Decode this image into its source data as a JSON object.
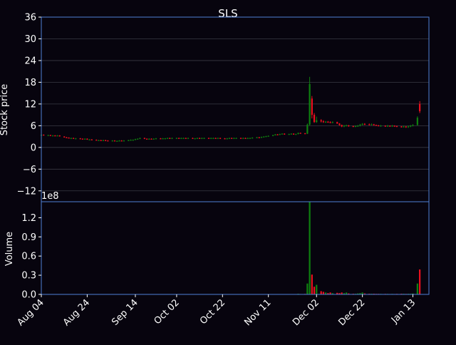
{
  "chart_data": {
    "type": "candlestick",
    "title": "SLS",
    "colors": {
      "background": "#07040e",
      "frame": "#4f7fd6",
      "grid": "#3a3a44",
      "up": "#0f7f0f",
      "down": "#e8101e",
      "text": "#ffffff"
    },
    "price_panel": {
      "ylabel": "Stock price",
      "ylim": [
        -15,
        36
      ],
      "yticks": [
        36,
        30,
        24,
        18,
        12,
        6,
        0,
        -6,
        -12
      ],
      "yticklabels": [
        "36",
        "30",
        "24",
        "18",
        "12",
        "6",
        "0",
        "−6",
        "−12"
      ]
    },
    "volume_panel": {
      "ylabel": "Volume",
      "offset_label": "1e8",
      "ylim": [
        0,
        1.45
      ],
      "yticks": [
        1.2,
        0.9,
        0.6,
        0.3,
        0.0
      ],
      "yticklabels": [
        "1.2",
        "0.9",
        "0.6",
        "0.3",
        "0.0"
      ]
    },
    "x_ticks": [
      {
        "day": 0,
        "label": "Aug 04"
      },
      {
        "day": 20,
        "label": "Aug 24"
      },
      {
        "day": 41,
        "label": "Sep 14"
      },
      {
        "day": 59,
        "label": "Oct 02"
      },
      {
        "day": 79,
        "label": "Oct 22"
      },
      {
        "day": 99,
        "label": "Nov 11"
      },
      {
        "day": 120,
        "label": "Dec 02"
      },
      {
        "day": 140,
        "label": "Dec 22"
      },
      {
        "day": 162,
        "label": "Jan 13"
      }
    ],
    "x_range": [
      0,
      169
    ],
    "candles": [
      [
        0,
        3.4,
        3.5,
        3.6,
        3.3,
        0.002
      ],
      [
        1,
        3.5,
        3.4,
        3.6,
        3.3,
        0.002
      ],
      [
        3,
        3.4,
        3.4,
        3.5,
        3.3,
        0.002
      ],
      [
        4,
        3.4,
        3.3,
        3.5,
        3.2,
        0.002
      ],
      [
        5,
        3.3,
        3.3,
        3.4,
        3.2,
        0.002
      ],
      [
        6,
        3.3,
        3.2,
        3.4,
        3.1,
        0.002
      ],
      [
        7,
        3.2,
        3.3,
        3.4,
        3.1,
        0.002
      ],
      [
        8,
        3.3,
        3.1,
        3.4,
        3.0,
        0.002
      ],
      [
        10,
        3.0,
        2.8,
        3.1,
        2.7,
        0.002
      ],
      [
        11,
        2.8,
        2.7,
        2.9,
        2.6,
        0.002
      ],
      [
        12,
        2.7,
        2.6,
        2.8,
        2.5,
        0.002
      ],
      [
        13,
        2.6,
        2.6,
        2.7,
        2.5,
        0.002
      ],
      [
        14,
        2.6,
        2.5,
        2.7,
        2.4,
        0.002
      ],
      [
        15,
        2.5,
        2.5,
        2.6,
        2.4,
        0.002
      ],
      [
        17,
        2.5,
        2.4,
        2.6,
        2.3,
        0.002
      ],
      [
        18,
        2.4,
        2.3,
        2.5,
        2.2,
        0.002
      ],
      [
        19,
        2.3,
        2.4,
        2.5,
        2.2,
        0.002
      ],
      [
        20,
        2.4,
        2.2,
        2.5,
        2.1,
        0.004
      ],
      [
        21,
        2.2,
        2.2,
        2.3,
        2.1,
        0.003
      ],
      [
        22,
        2.2,
        2.1,
        2.3,
        2.0,
        0.003
      ],
      [
        24,
        2.1,
        2.0,
        2.2,
        1.9,
        0.002
      ],
      [
        25,
        2.0,
        2.0,
        2.1,
        1.9,
        0.002
      ],
      [
        26,
        2.0,
        1.9,
        2.1,
        1.8,
        0.002
      ],
      [
        27,
        1.9,
        2.0,
        2.1,
        1.8,
        0.002
      ],
      [
        28,
        2.0,
        1.9,
        2.1,
        1.8,
        0.004
      ],
      [
        29,
        1.9,
        1.8,
        2.0,
        1.7,
        0.002
      ],
      [
        31,
        1.8,
        1.9,
        2.0,
        1.7,
        0.002
      ],
      [
        32,
        1.9,
        1.8,
        2.0,
        1.7,
        0.003
      ],
      [
        33,
        1.8,
        1.8,
        1.9,
        1.7,
        0.002
      ],
      [
        34,
        1.8,
        1.9,
        2.0,
        1.7,
        0.002
      ],
      [
        35,
        1.9,
        1.8,
        2.0,
        1.7,
        0.002
      ],
      [
        36,
        1.8,
        1.9,
        2.0,
        1.7,
        0.002
      ],
      [
        38,
        1.9,
        2.0,
        2.1,
        1.8,
        0.002
      ],
      [
        39,
        2.0,
        2.1,
        2.2,
        1.9,
        0.002
      ],
      [
        40,
        2.1,
        2.1,
        2.2,
        2.0,
        0.002
      ],
      [
        41,
        2.1,
        2.3,
        2.4,
        2.0,
        0.004
      ],
      [
        42,
        2.3,
        2.4,
        2.5,
        2.2,
        0.002
      ],
      [
        43,
        2.4,
        2.6,
        2.7,
        2.3,
        0.003
      ],
      [
        45,
        2.6,
        2.4,
        2.7,
        2.3,
        0.002
      ],
      [
        46,
        2.4,
        2.3,
        2.5,
        2.2,
        0.002
      ],
      [
        47,
        2.3,
        2.4,
        2.5,
        2.2,
        0.002
      ],
      [
        48,
        2.4,
        2.3,
        2.5,
        2.2,
        0.002
      ],
      [
        49,
        2.3,
        2.4,
        2.5,
        2.2,
        0.002
      ],
      [
        50,
        2.4,
        2.5,
        2.6,
        2.3,
        0.002
      ],
      [
        52,
        2.5,
        2.4,
        2.6,
        2.3,
        0.002
      ],
      [
        53,
        2.4,
        2.5,
        2.6,
        2.3,
        0.002
      ],
      [
        54,
        2.5,
        2.5,
        2.6,
        2.4,
        0.002
      ],
      [
        55,
        2.5,
        2.6,
        2.7,
        2.4,
        0.002
      ],
      [
        56,
        2.6,
        2.5,
        2.7,
        2.4,
        0.002
      ],
      [
        57,
        2.5,
        2.6,
        2.7,
        2.4,
        0.002
      ],
      [
        59,
        2.6,
        2.6,
        2.7,
        2.5,
        0.002
      ],
      [
        60,
        2.6,
        2.5,
        2.7,
        2.4,
        0.002
      ],
      [
        61,
        2.5,
        2.6,
        2.7,
        2.4,
        0.002
      ],
      [
        62,
        2.6,
        2.6,
        2.7,
        2.5,
        0.002
      ],
      [
        63,
        2.6,
        2.5,
        2.7,
        2.4,
        0.002
      ],
      [
        64,
        2.5,
        2.6,
        2.7,
        2.4,
        0.002
      ],
      [
        66,
        2.6,
        2.5,
        2.7,
        2.4,
        0.002
      ],
      [
        67,
        2.5,
        2.5,
        2.6,
        2.4,
        0.002
      ],
      [
        68,
        2.5,
        2.6,
        2.7,
        2.4,
        0.002
      ],
      [
        69,
        2.6,
        2.5,
        2.7,
        2.4,
        0.002
      ],
      [
        70,
        2.5,
        2.6,
        2.7,
        2.4,
        0.002
      ],
      [
        71,
        2.6,
        2.6,
        2.7,
        2.5,
        0.002
      ],
      [
        73,
        2.6,
        2.5,
        2.7,
        2.4,
        0.002
      ],
      [
        74,
        2.5,
        2.6,
        2.7,
        2.4,
        0.002
      ],
      [
        75,
        2.6,
        2.6,
        2.7,
        2.5,
        0.002
      ],
      [
        76,
        2.6,
        2.5,
        2.7,
        2.4,
        0.002
      ],
      [
        77,
        2.5,
        2.6,
        2.7,
        2.4,
        0.002
      ],
      [
        78,
        2.6,
        2.5,
        2.7,
        2.4,
        0.002
      ],
      [
        80,
        2.5,
        2.4,
        2.6,
        2.3,
        0.002
      ],
      [
        81,
        2.4,
        2.5,
        2.6,
        2.3,
        0.002
      ],
      [
        82,
        2.5,
        2.6,
        2.7,
        2.4,
        0.002
      ],
      [
        83,
        2.6,
        2.5,
        2.7,
        2.4,
        0.002
      ],
      [
        84,
        2.5,
        2.6,
        2.7,
        2.4,
        0.002
      ],
      [
        85,
        2.6,
        2.6,
        2.7,
        2.5,
        0.002
      ],
      [
        87,
        2.6,
        2.5,
        2.7,
        2.4,
        0.002
      ],
      [
        88,
        2.5,
        2.6,
        2.7,
        2.4,
        0.002
      ],
      [
        89,
        2.6,
        2.5,
        2.7,
        2.4,
        0.002
      ],
      [
        90,
        2.5,
        2.6,
        2.7,
        2.4,
        0.002
      ],
      [
        91,
        2.6,
        2.6,
        2.7,
        2.5,
        0.002
      ],
      [
        92,
        2.6,
        2.7,
        2.8,
        2.5,
        0.002
      ],
      [
        94,
        2.7,
        2.8,
        2.9,
        2.6,
        0.002
      ],
      [
        95,
        2.8,
        2.7,
        2.9,
        2.6,
        0.002
      ],
      [
        96,
        2.7,
        2.9,
        3.0,
        2.6,
        0.002
      ],
      [
        97,
        2.9,
        3.0,
        3.1,
        2.8,
        0.002
      ],
      [
        98,
        3.0,
        3.1,
        3.2,
        2.9,
        0.004
      ],
      [
        99,
        3.1,
        3.2,
        3.3,
        3.0,
        0.003
      ],
      [
        101,
        3.2,
        3.4,
        3.5,
        3.1,
        0.003
      ],
      [
        102,
        3.4,
        3.6,
        3.7,
        3.3,
        0.004
      ],
      [
        103,
        3.6,
        3.5,
        3.7,
        3.4,
        0.003
      ],
      [
        104,
        3.5,
        3.7,
        3.8,
        3.4,
        0.003
      ],
      [
        105,
        3.7,
        3.8,
        3.9,
        3.6,
        0.003
      ],
      [
        106,
        3.8,
        3.6,
        3.9,
        3.5,
        0.003
      ],
      [
        108,
        3.6,
        3.7,
        3.8,
        3.5,
        0.004
      ],
      [
        109,
        3.7,
        3.8,
        3.9,
        3.6,
        0.003
      ],
      [
        110,
        3.8,
        3.6,
        3.9,
        3.5,
        0.003
      ],
      [
        111,
        3.6,
        3.7,
        3.8,
        3.5,
        0.004
      ],
      [
        112,
        3.7,
        4.0,
        4.1,
        3.6,
        0.01
      ],
      [
        113,
        4.0,
        3.9,
        4.1,
        3.8,
        0.006
      ],
      [
        115,
        3.9,
        3.8,
        4.0,
        3.7,
        0.008
      ],
      [
        116,
        3.8,
        6.3,
        6.6,
        3.7,
        0.17
      ],
      [
        117,
        6.3,
        17.5,
        19.5,
        6.0,
        1.45
      ],
      [
        118,
        13.5,
        9.0,
        14.2,
        8.0,
        0.31
      ],
      [
        119,
        9.0,
        7.0,
        9.5,
        6.8,
        0.12
      ],
      [
        120,
        7.0,
        7.5,
        8.5,
        6.8,
        0.15
      ],
      [
        122,
        7.5,
        7.2,
        7.8,
        6.9,
        0.05
      ],
      [
        123,
        7.2,
        7.0,
        7.5,
        6.8,
        0.04
      ],
      [
        124,
        7.0,
        7.1,
        7.3,
        6.8,
        0.03
      ],
      [
        125,
        7.1,
        7.0,
        7.3,
        6.8,
        0.02
      ],
      [
        126,
        7.0,
        6.9,
        7.2,
        6.7,
        0.03
      ],
      [
        127,
        6.9,
        7.0,
        7.2,
        6.7,
        0.02
      ],
      [
        129,
        7.0,
        6.6,
        7.1,
        6.5,
        0.025
      ],
      [
        130,
        6.6,
        6.2,
        6.7,
        6.0,
        0.02
      ],
      [
        131,
        6.2,
        5.8,
        6.3,
        5.6,
        0.03
      ],
      [
        132,
        5.8,
        6.0,
        6.2,
        5.6,
        0.02
      ],
      [
        133,
        6.0,
        6.1,
        6.3,
        5.8,
        0.03
      ],
      [
        134,
        6.1,
        5.9,
        6.2,
        5.7,
        0.015
      ],
      [
        136,
        5.9,
        5.8,
        6.0,
        5.6,
        0.01
      ],
      [
        137,
        5.8,
        5.9,
        6.1,
        5.6,
        0.01
      ],
      [
        138,
        5.9,
        6.0,
        6.2,
        5.7,
        0.015
      ],
      [
        139,
        6.0,
        6.3,
        6.5,
        5.8,
        0.02
      ],
      [
        140,
        6.3,
        6.5,
        6.7,
        6.1,
        0.03
      ],
      [
        141,
        6.5,
        6.4,
        6.7,
        6.2,
        0.015
      ],
      [
        143,
        6.4,
        6.3,
        6.6,
        6.1,
        0.01
      ],
      [
        144,
        6.3,
        6.4,
        6.6,
        6.1,
        0.01
      ],
      [
        145,
        6.4,
        6.2,
        6.5,
        6.0,
        0.01
      ],
      [
        146,
        6.2,
        6.1,
        6.3,
        5.9,
        0.008
      ],
      [
        147,
        6.1,
        6.0,
        6.2,
        5.8,
        0.008
      ],
      [
        148,
        6.0,
        6.0,
        6.2,
        5.8,
        0.008
      ],
      [
        150,
        6.0,
        5.9,
        6.1,
        5.7,
        0.008
      ],
      [
        151,
        5.9,
        6.0,
        6.2,
        5.7,
        0.008
      ],
      [
        152,
        6.0,
        5.9,
        6.1,
        5.7,
        0.006
      ],
      [
        153,
        5.9,
        6.0,
        6.2,
        5.7,
        0.008
      ],
      [
        154,
        6.0,
        5.9,
        6.1,
        5.7,
        0.006
      ],
      [
        155,
        5.9,
        5.8,
        6.0,
        5.6,
        0.008
      ],
      [
        157,
        5.8,
        5.7,
        5.9,
        5.5,
        0.01
      ],
      [
        158,
        5.7,
        5.8,
        6.0,
        5.5,
        0.01
      ],
      [
        159,
        5.8,
        5.6,
        5.9,
        5.4,
        0.008
      ],
      [
        160,
        5.6,
        5.8,
        6.0,
        5.4,
        0.01
      ],
      [
        161,
        5.8,
        6.0,
        6.2,
        5.6,
        0.01
      ],
      [
        162,
        6.0,
        6.2,
        6.4,
        5.8,
        0.015
      ],
      [
        164,
        6.2,
        8.2,
        8.6,
        6.0,
        0.17
      ],
      [
        165,
        12.0,
        10.0,
        12.8,
        9.5,
        0.39
      ]
    ]
  }
}
